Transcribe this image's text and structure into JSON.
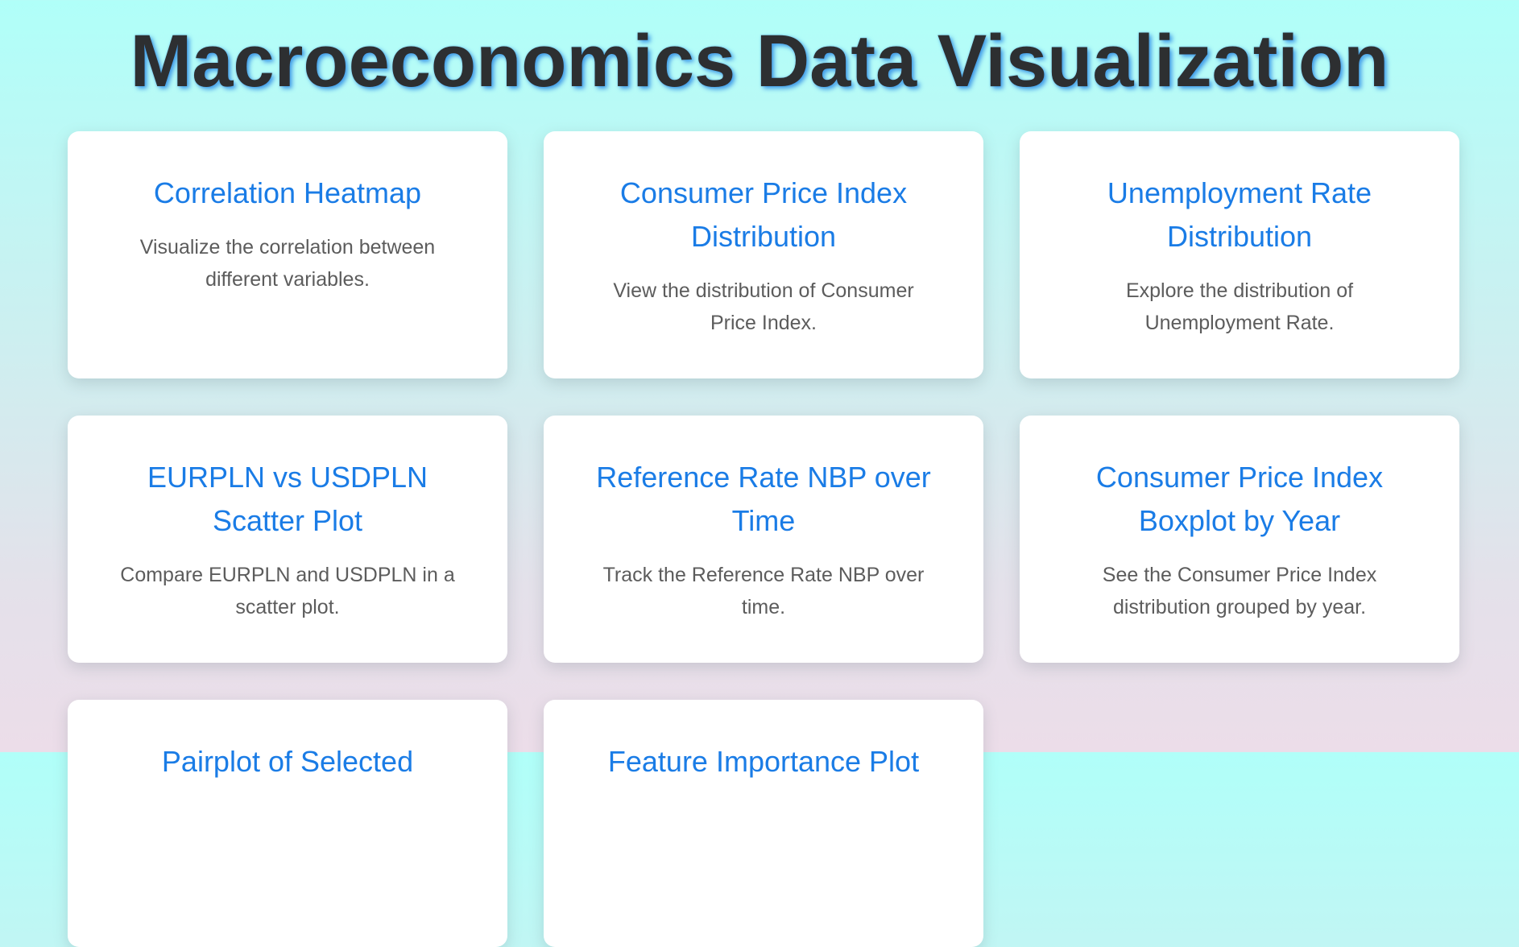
{
  "page": {
    "title": "Macroeconomics Data Visualization",
    "colors": {
      "title_text": "#2d2f31",
      "title_shadow": "#3f9ae8",
      "card_title": "#1a7ce6",
      "card_text": "#5c5c5c",
      "card_bg": "#ffffff"
    }
  },
  "cards": [
    {
      "title": "Correlation Heatmap",
      "description": "Visualize the correlation between different variables."
    },
    {
      "title": "Consumer Price Index Distribution",
      "description": "View the distribution of Consumer Price Index."
    },
    {
      "title": "Unemployment Rate Distribution",
      "description": "Explore the distribution of Unemployment Rate."
    },
    {
      "title": "EURPLN vs USDPLN Scatter Plot",
      "description": "Compare EURPLN and USDPLN in a scatter plot."
    },
    {
      "title": "Reference Rate NBP over Time",
      "description": "Track the Reference Rate NBP over time."
    },
    {
      "title": "Consumer Price Index Boxplot by Year",
      "description": "See the Consumer Price Index distribution grouped by year."
    },
    {
      "title": "Pairplot of Selected",
      "description": ""
    },
    {
      "title": "Feature Importance Plot",
      "description": ""
    }
  ]
}
